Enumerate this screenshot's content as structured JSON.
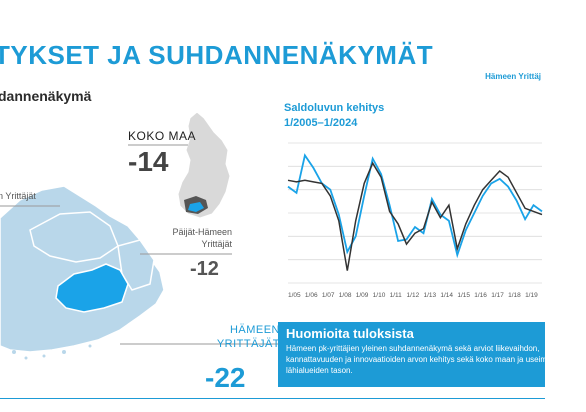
{
  "header": {
    "title": "TYKSET JA SUHDANNENÄKYMÄT",
    "brand": "Hämeen Yrittäj",
    "subtitle": "dannenäkymä"
  },
  "map": {
    "koko_maa_label": "KOKO MAA",
    "koko_maa_value": "-14",
    "region_label": "n Yrittäjät",
    "paijat_label": "Päijät-Hämeen Yrittäjät",
    "paijat_value": "-12",
    "hameen_label": "HÄMEEN YRITTÄJÄT",
    "hameen_value": "-22",
    "colors": {
      "highlight": "#1aa3e8",
      "region": "#b9d7ea",
      "region_border": "#ffffff",
      "finland": "#d9d9d9",
      "accent": "#1d9bd6"
    }
  },
  "chart_data": {
    "type": "line",
    "title": "Saldoluvun kehitys\n1/2005–1/2024",
    "title_lines": [
      "Saldoluvun kehitys",
      "1/2005–1/2024"
    ],
    "categories": [
      "1/05",
      "1/06",
      "1/07",
      "1/08",
      "1/09",
      "1/10",
      "1/11",
      "1/12",
      "1/13",
      "1/14",
      "1/15",
      "1/16",
      "1/17",
      "1/18",
      "1/19"
    ],
    "x": [
      2005,
      2005.5,
      2006,
      2006.5,
      2007,
      2007.5,
      2008,
      2008.5,
      2009,
      2009.5,
      2010,
      2010.5,
      2011,
      2011.5,
      2012,
      2012.5,
      2013,
      2013.5,
      2014,
      2014.5,
      2015,
      2015.5,
      2016,
      2016.5,
      2017,
      2017.5,
      2018,
      2018.5,
      2019,
      2019.5,
      2020
    ],
    "series": [
      {
        "color": "#1aa3e8",
        "values": [
          2,
          -2,
          22,
          14,
          4,
          0,
          -16,
          -40,
          -30,
          -4,
          20,
          10,
          -10,
          -33,
          -32,
          -24,
          -28,
          -6,
          -16,
          -20,
          -42,
          -26,
          -15,
          -4,
          4,
          7,
          2,
          -7,
          -19,
          -10,
          -14
        ]
      },
      {
        "color": "#333333",
        "values": [
          6,
          5,
          6,
          5,
          4,
          -4,
          -20,
          -52,
          -20,
          4,
          17,
          8,
          -14,
          -22,
          -35,
          -28,
          -25,
          -8,
          -18,
          -10,
          -38,
          -22,
          -10,
          0,
          6,
          12,
          8,
          -2,
          -12,
          -14,
          -16
        ]
      }
    ],
    "ylim": [
      -60,
      30
    ],
    "grid": true
  },
  "notes": {
    "title": "Huomioita tuloksista",
    "text": "Hämeen pk-yrittäjien yleinen suhdannenäkymä sekä arviot liikevaihdon, kannattavuuden ja innovaatioiden arvon kehitys sekä koko maan ja useimpien lähialueiden tason."
  }
}
